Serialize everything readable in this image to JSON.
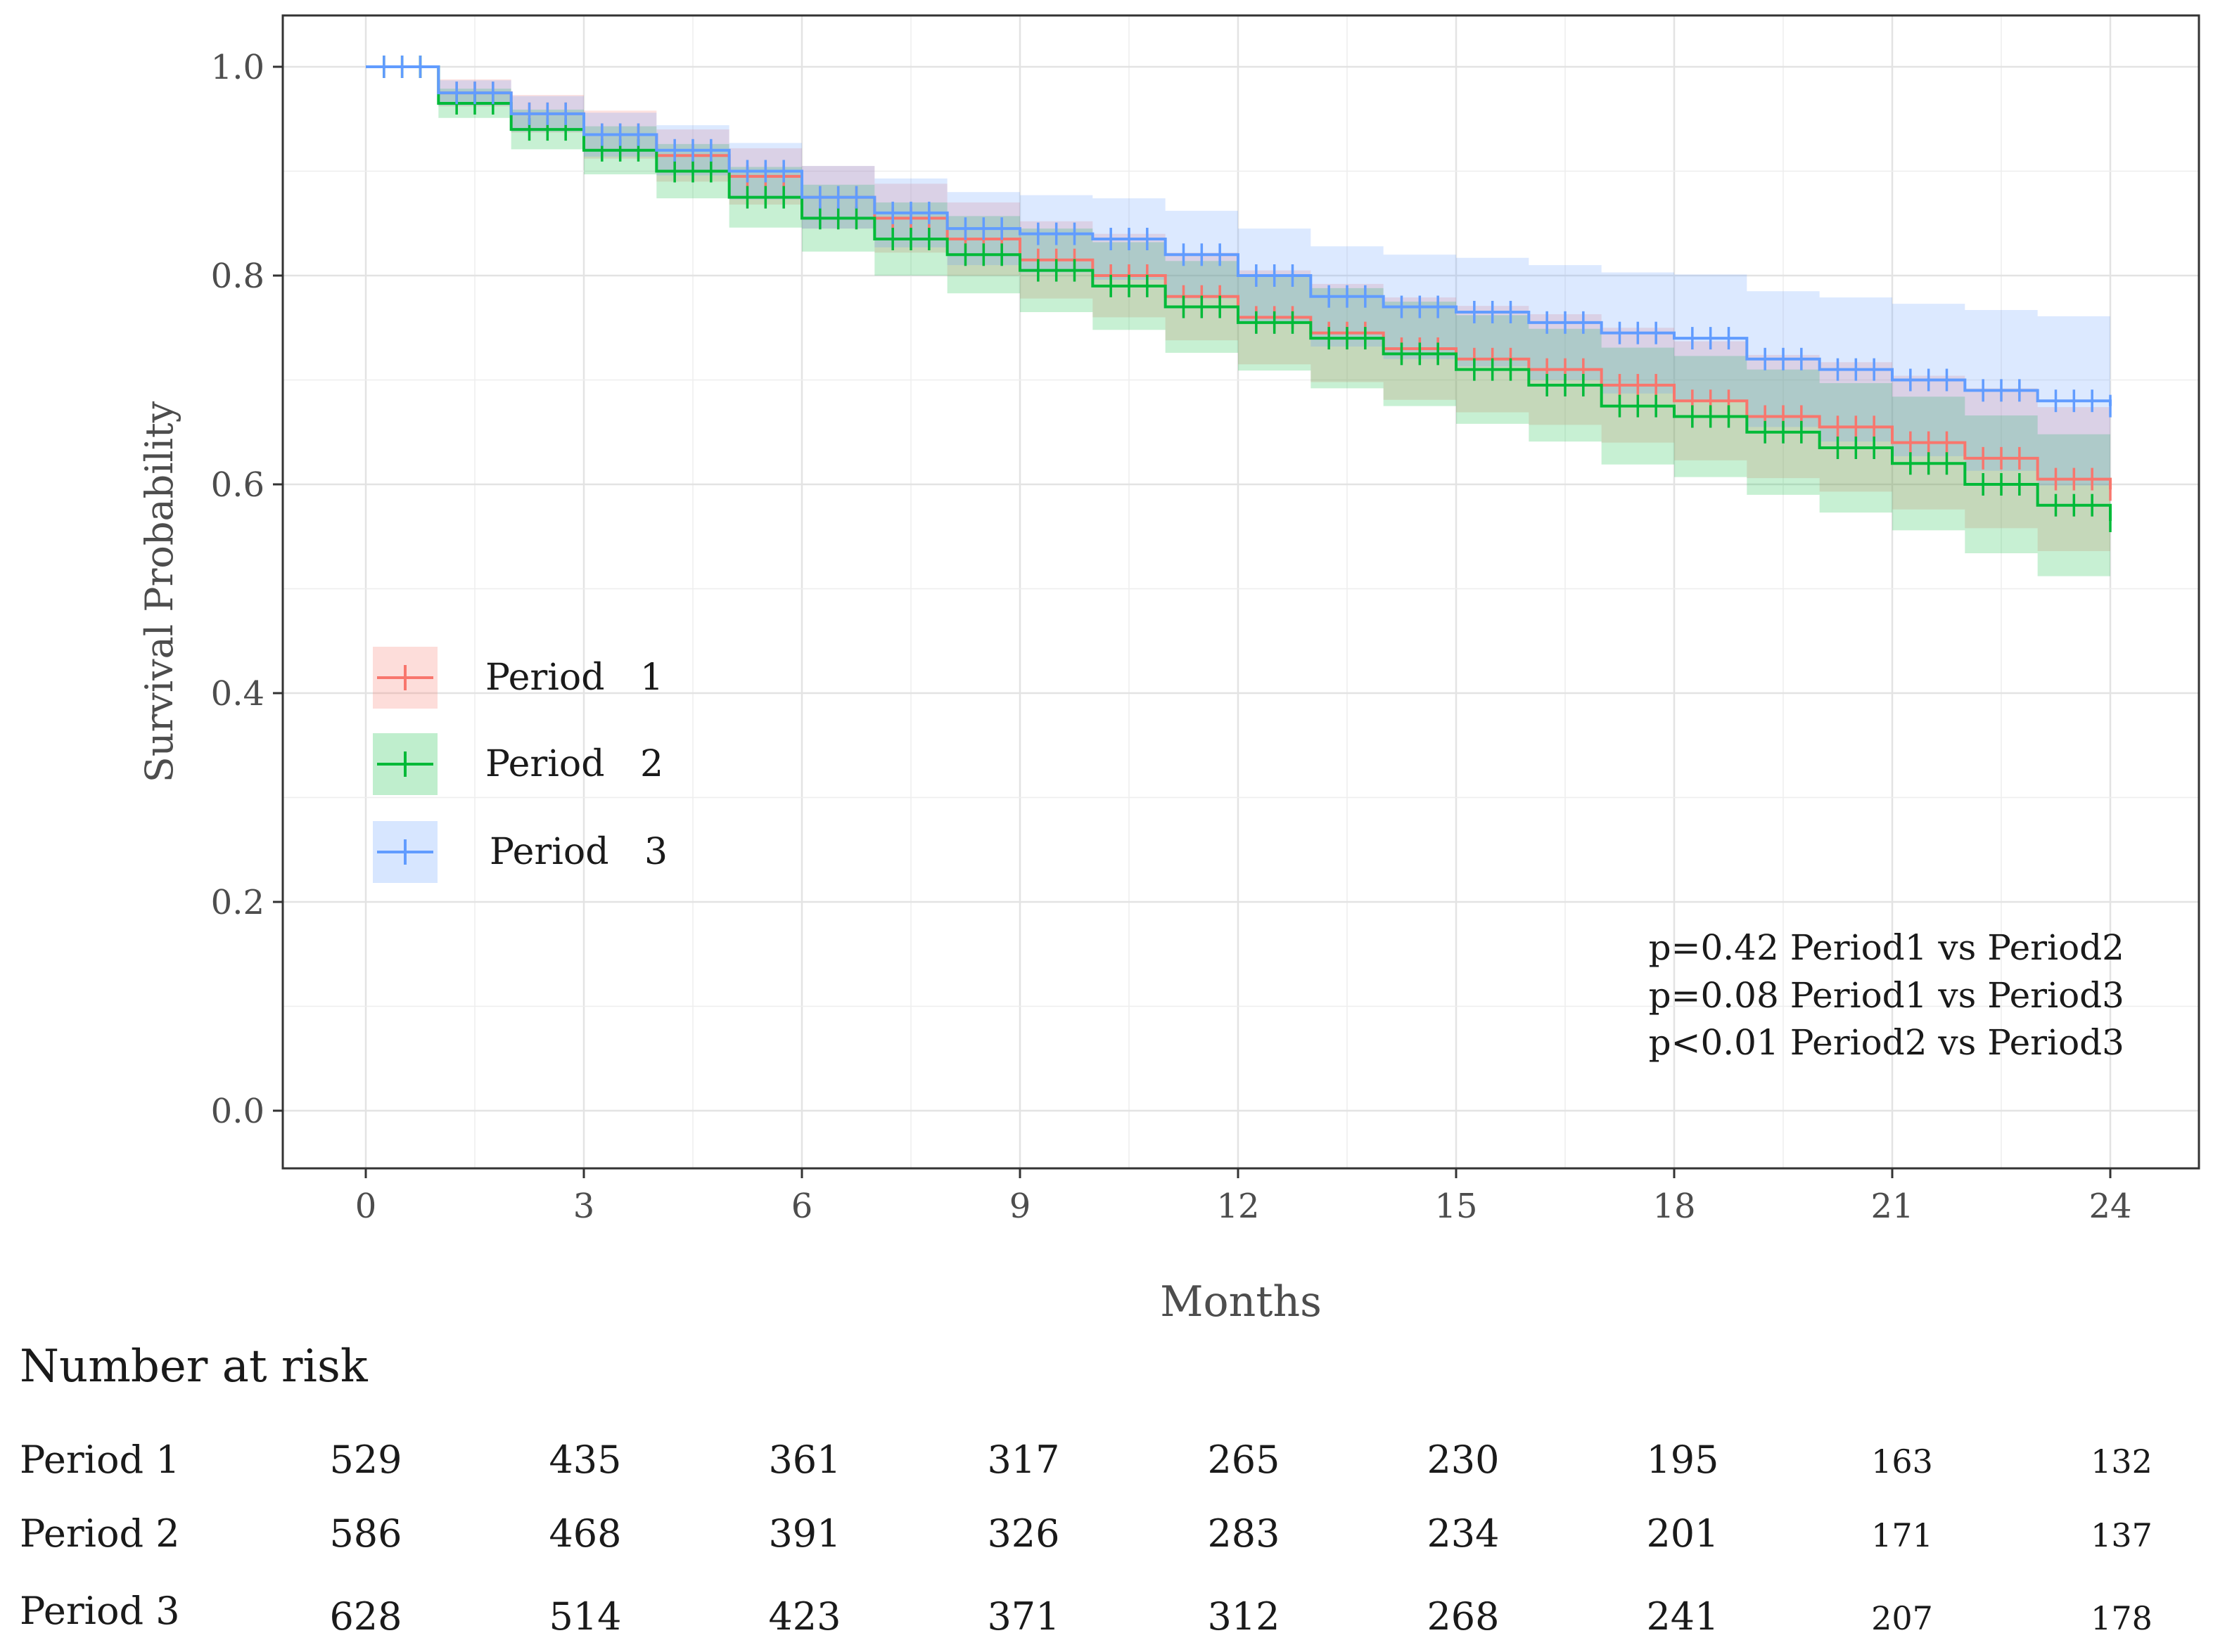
{
  "chart_data": {
    "type": "line",
    "subtype": "kaplan-meier",
    "title": "",
    "xlabel": "Months",
    "ylabel": "Survival Probability",
    "xlim": [
      0,
      24
    ],
    "ylim": [
      0,
      1
    ],
    "x_ticks": [
      0,
      3,
      6,
      9,
      12,
      15,
      18,
      21,
      24
    ],
    "x_tick_labels": [
      "0",
      "3",
      "6",
      "9",
      "12",
      "15",
      "18",
      "21",
      "24"
    ],
    "y_ticks": [
      0,
      0.2,
      0.4,
      0.6,
      0.8,
      1.0
    ],
    "y_tick_labels": [
      "0.0",
      "0.2",
      "0.4",
      "0.6",
      "0.8",
      "1.0"
    ],
    "grid": true,
    "legend_position": "middle-left",
    "series": [
      {
        "name": "Period 1",
        "legend_word": "Period",
        "legend_number": "1",
        "color": "#F8766D",
        "time": [
          0,
          1,
          2,
          3,
          4,
          5,
          6,
          7,
          8,
          9,
          10,
          11,
          12,
          13,
          14,
          15,
          16,
          17,
          18,
          19,
          20,
          21,
          22,
          23,
          24
        ],
        "survival": [
          1.0,
          0.975,
          0.955,
          0.935,
          0.915,
          0.895,
          0.875,
          0.855,
          0.835,
          0.815,
          0.8,
          0.78,
          0.76,
          0.745,
          0.73,
          0.72,
          0.71,
          0.695,
          0.68,
          0.665,
          0.655,
          0.64,
          0.625,
          0.605,
          0.595
        ],
        "lower": [
          1.0,
          0.962,
          0.937,
          0.912,
          0.89,
          0.868,
          0.845,
          0.822,
          0.8,
          0.778,
          0.76,
          0.738,
          0.715,
          0.698,
          0.681,
          0.669,
          0.657,
          0.64,
          0.623,
          0.606,
          0.593,
          0.576,
          0.558,
          0.536,
          0.523
        ],
        "upper": [
          1.0,
          0.988,
          0.973,
          0.958,
          0.94,
          0.922,
          0.905,
          0.888,
          0.87,
          0.852,
          0.84,
          0.822,
          0.805,
          0.792,
          0.779,
          0.771,
          0.763,
          0.75,
          0.737,
          0.724,
          0.717,
          0.704,
          0.692,
          0.674,
          0.667
        ]
      },
      {
        "name": "Period 2",
        "legend_word": "Period",
        "legend_number": "2",
        "color": "#00BA38",
        "time": [
          0,
          1,
          2,
          3,
          4,
          5,
          6,
          7,
          8,
          9,
          10,
          11,
          12,
          13,
          14,
          15,
          16,
          17,
          18,
          19,
          20,
          21,
          22,
          23,
          24
        ],
        "survival": [
          1.0,
          0.965,
          0.94,
          0.92,
          0.9,
          0.875,
          0.855,
          0.835,
          0.82,
          0.805,
          0.79,
          0.77,
          0.755,
          0.74,
          0.725,
          0.71,
          0.695,
          0.675,
          0.665,
          0.65,
          0.635,
          0.62,
          0.6,
          0.58,
          0.565
        ],
        "lower": [
          1.0,
          0.951,
          0.921,
          0.897,
          0.874,
          0.846,
          0.823,
          0.8,
          0.783,
          0.765,
          0.748,
          0.726,
          0.709,
          0.692,
          0.675,
          0.658,
          0.641,
          0.619,
          0.607,
          0.59,
          0.573,
          0.556,
          0.534,
          0.512,
          0.495
        ],
        "upper": [
          1.0,
          0.979,
          0.959,
          0.943,
          0.926,
          0.904,
          0.887,
          0.87,
          0.857,
          0.845,
          0.832,
          0.814,
          0.801,
          0.788,
          0.775,
          0.762,
          0.749,
          0.731,
          0.723,
          0.71,
          0.697,
          0.684,
          0.666,
          0.648,
          0.635
        ]
      },
      {
        "name": "Period 3",
        "legend_word": "Period",
        "legend_number": "3",
        "color": "#619CFF",
        "time": [
          0,
          1,
          2,
          3,
          4,
          5,
          6,
          7,
          8,
          9,
          10,
          11,
          12,
          13,
          14,
          15,
          16,
          17,
          18,
          19,
          20,
          21,
          22,
          23,
          24
        ],
        "survival": [
          1.0,
          0.975,
          0.955,
          0.935,
          0.92,
          0.9,
          0.875,
          0.86,
          0.845,
          0.84,
          0.835,
          0.82,
          0.8,
          0.78,
          0.77,
          0.765,
          0.755,
          0.745,
          0.74,
          0.72,
          0.71,
          0.7,
          0.69,
          0.68,
          0.675
        ],
        "lower": [
          1.0,
          0.963,
          0.938,
          0.914,
          0.896,
          0.873,
          0.845,
          0.827,
          0.81,
          0.803,
          0.796,
          0.778,
          0.755,
          0.732,
          0.72,
          0.713,
          0.7,
          0.687,
          0.679,
          0.655,
          0.641,
          0.627,
          0.613,
          0.599,
          0.59
        ],
        "upper": [
          1.0,
          0.987,
          0.972,
          0.956,
          0.944,
          0.927,
          0.905,
          0.893,
          0.88,
          0.877,
          0.874,
          0.862,
          0.845,
          0.828,
          0.82,
          0.817,
          0.81,
          0.803,
          0.801,
          0.785,
          0.779,
          0.773,
          0.767,
          0.761,
          0.76
        ]
      }
    ],
    "annotations": [
      "p=0.42 Period1 vs Period2",
      "p=0.08 Period1 vs Period3",
      "p<0.01 Period2 vs Period3"
    ],
    "risk_table": {
      "title": "Number at risk",
      "time_points": [
        0,
        3,
        6,
        9,
        12,
        15,
        18,
        21,
        24
      ],
      "rows": [
        {
          "label": "Period 1",
          "values": [
            "529",
            "435",
            "361",
            "317",
            "265",
            "230",
            "195",
            "163",
            "132"
          ]
        },
        {
          "label": "Period 2",
          "values": [
            "586",
            "468",
            "391",
            "326",
            "283",
            "234",
            "201",
            "171",
            "137"
          ]
        },
        {
          "label": "Period 3",
          "values": [
            "628",
            "514",
            "423",
            "371",
            "312",
            "268",
            "241",
            "207",
            "178"
          ]
        }
      ]
    }
  }
}
